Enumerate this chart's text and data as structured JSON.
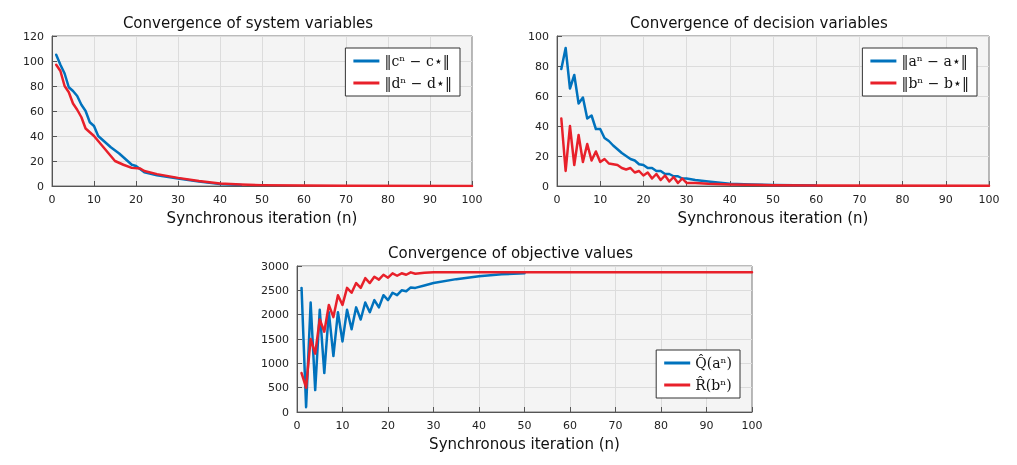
{
  "chart_data": [
    {
      "type": "line",
      "title": "Convergence of system variables",
      "xlabel": "Synchronous iteration (n)",
      "xlim": [
        0,
        100
      ],
      "xticks": [
        0,
        10,
        20,
        30,
        40,
        50,
        60,
        70,
        80,
        90,
        100
      ],
      "ylim": [
        0,
        120
      ],
      "yticks": [
        0,
        20,
        40,
        60,
        80,
        100,
        120
      ],
      "grid": true,
      "legend": "top right",
      "marker": "none",
      "line_style": "solid",
      "series": [
        {
          "name": "‖cⁿ − c⋆‖",
          "color": "#0072bd",
          "x": [
            1,
            2,
            3,
            4,
            5,
            6,
            7,
            8,
            9,
            10,
            11,
            12,
            14,
            16,
            18,
            19,
            20,
            22,
            25,
            30,
            35,
            40,
            45
          ],
          "values": [
            105,
            97,
            90,
            79,
            76,
            72,
            65,
            60,
            51,
            48,
            40,
            37,
            31,
            26,
            20,
            17,
            16,
            11,
            8.5,
            6,
            3.5,
            1.5,
            0.8
          ]
        },
        {
          "name": "‖dⁿ − d⋆‖",
          "color": "#e8202a",
          "x": [
            1,
            2,
            3,
            4,
            5,
            6,
            7,
            8,
            9,
            10,
            12,
            14,
            15,
            17,
            19,
            21,
            22,
            25,
            30,
            35,
            40,
            45,
            50,
            60,
            70,
            100
          ],
          "values": [
            97,
            92,
            80,
            75,
            66,
            61,
            55,
            46,
            43,
            40,
            32,
            24,
            20,
            17,
            14.5,
            14,
            12,
            9.5,
            6.5,
            4,
            2,
            1.2,
            0.7,
            0.4,
            0.2,
            0.1
          ]
        }
      ]
    },
    {
      "type": "line",
      "title": "Convergence of decision variables",
      "xlabel": "Synchronous iteration (n)",
      "xlim": [
        0,
        100
      ],
      "xticks": [
        0,
        10,
        20,
        30,
        40,
        50,
        60,
        70,
        80,
        90,
        100
      ],
      "ylim": [
        0,
        100
      ],
      "yticks": [
        0,
        20,
        40,
        60,
        80,
        100
      ],
      "grid": true,
      "legend": "top right",
      "marker": "none",
      "line_style": "solid",
      "series": [
        {
          "name": "‖aⁿ − a⋆‖",
          "color": "#0072bd",
          "x": [
            1,
            2,
            3,
            4,
            5,
            6,
            7,
            8,
            9,
            10,
            11,
            12,
            13,
            15,
            17,
            18,
            19,
            20,
            21,
            22,
            23,
            24,
            25,
            26,
            27,
            28,
            29,
            30,
            32,
            35,
            40,
            45,
            50,
            60
          ],
          "values": [
            78,
            92,
            65,
            74,
            55,
            59,
            45,
            47,
            38,
            38,
            32,
            30,
            27,
            22,
            18,
            17,
            14.5,
            14,
            12,
            12,
            10,
            10,
            8,
            8,
            6.5,
            6.5,
            5,
            5,
            4,
            3,
            1.5,
            1,
            0.6,
            0.3
          ]
        },
        {
          "name": "‖bⁿ − b⋆‖",
          "color": "#e8202a",
          "x": [
            1,
            2,
            3,
            4,
            5,
            6,
            7,
            8,
            9,
            10,
            11,
            12,
            14,
            15,
            16,
            17,
            18,
            19,
            20,
            21,
            22,
            23,
            24,
            25,
            26,
            27,
            28,
            29,
            30,
            32,
            35,
            40,
            50,
            60,
            100
          ],
          "values": [
            45,
            10,
            40,
            14,
            34,
            16,
            28,
            17,
            23,
            16,
            18,
            15,
            14,
            12,
            11,
            12,
            9,
            10,
            7,
            9,
            5,
            8,
            4,
            7,
            3,
            6,
            2,
            5,
            2,
            2,
            1.5,
            1,
            0.5,
            0.3,
            0.1
          ]
        }
      ]
    },
    {
      "type": "line",
      "title": "Convergence of objective values",
      "xlabel": "Synchronous iteration (n)",
      "xlim": [
        0,
        100
      ],
      "xticks": [
        0,
        10,
        20,
        30,
        40,
        50,
        60,
        70,
        80,
        90,
        100
      ],
      "ylim": [
        0,
        3000
      ],
      "yticks": [
        0,
        500,
        1000,
        1500,
        2000,
        2500,
        3000
      ],
      "grid": true,
      "legend": "bottom right",
      "marker": "none",
      "line_style": "solid",
      "series": [
        {
          "name": "Q̂(aⁿ)",
          "color": "#0072bd",
          "x": [
            1,
            2,
            3,
            4,
            5,
            6,
            7,
            8,
            9,
            10,
            11,
            12,
            13,
            14,
            15,
            16,
            17,
            18,
            19,
            20,
            21,
            22,
            23,
            24,
            25,
            26,
            28,
            30,
            35,
            40,
            45,
            50
          ],
          "values": [
            2550,
            100,
            2250,
            450,
            2100,
            800,
            2050,
            1150,
            2050,
            1450,
            2100,
            1700,
            2150,
            1900,
            2250,
            2050,
            2300,
            2150,
            2400,
            2300,
            2450,
            2400,
            2500,
            2480,
            2560,
            2550,
            2600,
            2650,
            2730,
            2790,
            2830,
            2850
          ]
        },
        {
          "name": "R̂(bⁿ)",
          "color": "#e8202a",
          "x": [
            1,
            2,
            3,
            4,
            5,
            6,
            7,
            8,
            9,
            10,
            11,
            12,
            13,
            14,
            15,
            16,
            17,
            18,
            19,
            20,
            21,
            22,
            23,
            24,
            25,
            26,
            28,
            30,
            40,
            100
          ],
          "values": [
            800,
            500,
            1500,
            1200,
            1900,
            1650,
            2200,
            1950,
            2400,
            2200,
            2550,
            2450,
            2650,
            2550,
            2750,
            2650,
            2780,
            2720,
            2820,
            2760,
            2850,
            2800,
            2850,
            2820,
            2870,
            2840,
            2860,
            2870,
            2870,
            2870
          ]
        }
      ]
    }
  ]
}
